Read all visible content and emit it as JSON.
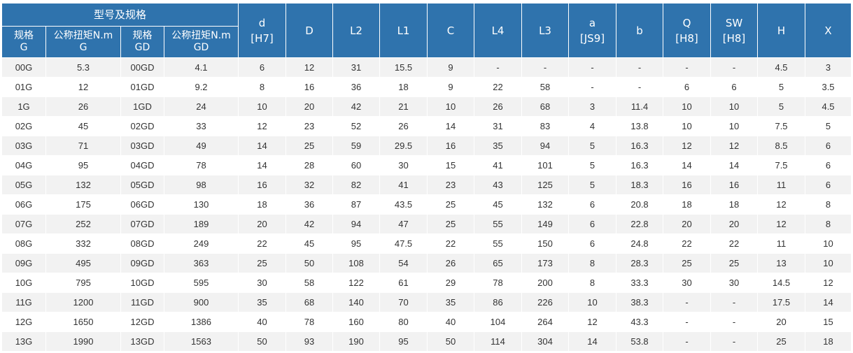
{
  "header": {
    "group_title": "型号及规格",
    "sub": [
      {
        "line1": "规格",
        "line2": "G"
      },
      {
        "line1": "公称扭矩N.m",
        "line2": "G"
      },
      {
        "line1": "规格",
        "line2": "GD"
      },
      {
        "line1": "公称扭矩N.m",
        "line2": "GD"
      }
    ],
    "dims": [
      {
        "line1": "d",
        "line2": "[H7]"
      },
      {
        "line1": "D",
        "line2": ""
      },
      {
        "line1": "L2",
        "line2": ""
      },
      {
        "line1": "L1",
        "line2": ""
      },
      {
        "line1": "C",
        "line2": ""
      },
      {
        "line1": "L4",
        "line2": ""
      },
      {
        "line1": "L3",
        "line2": ""
      },
      {
        "line1": "a",
        "line2": "[JS9]"
      },
      {
        "line1": "b",
        "line2": ""
      },
      {
        "line1": "Q",
        "line2": "[H8]"
      },
      {
        "line1": "SW",
        "line2": "[H8]"
      },
      {
        "line1": "H",
        "line2": ""
      },
      {
        "line1": "X",
        "line2": ""
      }
    ]
  },
  "rows": [
    [
      "00G",
      "5.3",
      "00GD",
      "4.1",
      "6",
      "12",
      "31",
      "15.5",
      "9",
      "-",
      "-",
      "-",
      "-",
      "-",
      "-",
      "4.5",
      "3"
    ],
    [
      "01G",
      "12",
      "01GD",
      "9.2",
      "8",
      "16",
      "36",
      "18",
      "9",
      "22",
      "58",
      "-",
      "-",
      "6",
      "6",
      "5",
      "3.5"
    ],
    [
      "1G",
      "26",
      "1GD",
      "24",
      "10",
      "20",
      "42",
      "21",
      "10",
      "26",
      "68",
      "3",
      "11.4",
      "10",
      "10",
      "5",
      "4.5"
    ],
    [
      "02G",
      "45",
      "02GD",
      "33",
      "12",
      "23",
      "52",
      "26",
      "14",
      "31",
      "83",
      "4",
      "13.8",
      "10",
      "10",
      "7.5",
      "5"
    ],
    [
      "03G",
      "71",
      "03GD",
      "49",
      "14",
      "25",
      "59",
      "29.5",
      "16",
      "35",
      "94",
      "5",
      "16.3",
      "12",
      "12",
      "8.5",
      "6"
    ],
    [
      "04G",
      "95",
      "04GD",
      "78",
      "14",
      "28",
      "60",
      "30",
      "15",
      "41",
      "101",
      "5",
      "16.3",
      "14",
      "14",
      "7.5",
      "6"
    ],
    [
      "05G",
      "132",
      "05GD",
      "98",
      "16",
      "32",
      "82",
      "41",
      "23",
      "43",
      "125",
      "5",
      "18.3",
      "16",
      "16",
      "11",
      "6"
    ],
    [
      "06G",
      "175",
      "06GD",
      "130",
      "18",
      "36",
      "87",
      "43.5",
      "25",
      "45",
      "132",
      "6",
      "20.8",
      "18",
      "18",
      "12",
      "8"
    ],
    [
      "07G",
      "252",
      "07GD",
      "189",
      "20",
      "42",
      "94",
      "47",
      "25",
      "55",
      "149",
      "6",
      "22.8",
      "20",
      "20",
      "12",
      "8"
    ],
    [
      "08G",
      "332",
      "08GD",
      "249",
      "22",
      "45",
      "95",
      "47.5",
      "22",
      "55",
      "150",
      "6",
      "24.8",
      "22",
      "22",
      "11",
      "10"
    ],
    [
      "09G",
      "495",
      "09GD",
      "363",
      "25",
      "50",
      "108",
      "54",
      "26",
      "65",
      "173",
      "8",
      "28.3",
      "25",
      "25",
      "13",
      "10"
    ],
    [
      "10G",
      "795",
      "10GD",
      "595",
      "30",
      "58",
      "122",
      "61",
      "29",
      "78",
      "200",
      "8",
      "33.3",
      "30",
      "30",
      "14.5",
      "12"
    ],
    [
      "11G",
      "1200",
      "11GD",
      "900",
      "35",
      "68",
      "140",
      "70",
      "35",
      "86",
      "226",
      "10",
      "38.3",
      "-",
      "-",
      "17.5",
      "14"
    ],
    [
      "12G",
      "1650",
      "12GD",
      "1386",
      "40",
      "78",
      "160",
      "80",
      "40",
      "104",
      "264",
      "12",
      "43.3",
      "-",
      "-",
      "20",
      "15"
    ],
    [
      "13G",
      "1990",
      "13GD",
      "1563",
      "50",
      "93",
      "190",
      "95",
      "50",
      "114",
      "304",
      "14",
      "53.8",
      "-",
      "-",
      "25",
      "18"
    ]
  ]
}
